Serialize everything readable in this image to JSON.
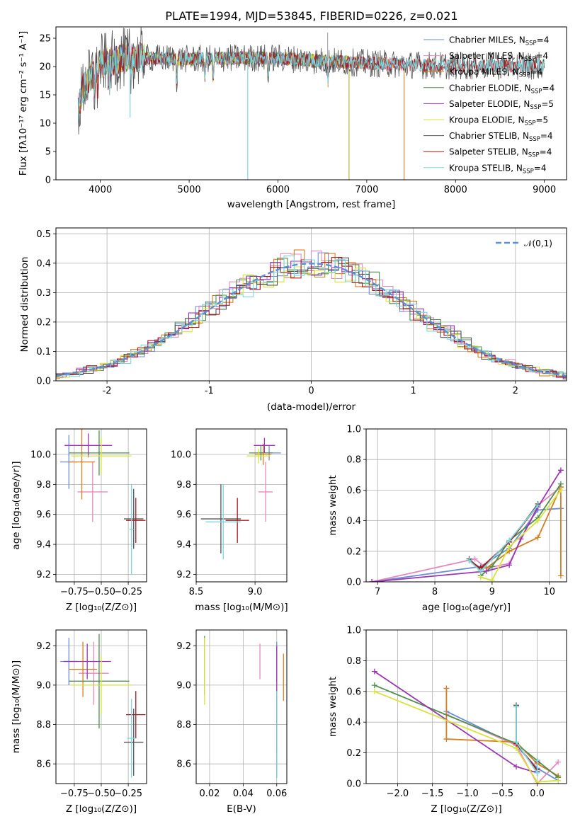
{
  "colors": {
    "Chabrier MILES": "#6b8fd6",
    "Salpeter MILES": "#e58ac0",
    "Kroupa MILES": "#d97d1f",
    "Chabrier ELODIE": "#4f8f4f",
    "Salpeter ELODIE": "#9b35b5",
    "Kroupa ELODIE": "#d7e33a",
    "Chabrier STELIB": "#555555",
    "Salpeter STELIB": "#b0181c",
    "Kroupa STELIB": "#7ad8e0"
  },
  "chart_data": [
    {
      "id": "spectrum",
      "type": "line",
      "title": "PLATE=1994, MJD=53845, FIBERID=0226, z=0.021",
      "xlabel": "wavelength [Angstrom, rest frame]",
      "ylabel": "Flux [fλ10⁻¹⁷ erg cm⁻² s⁻¹ A⁻¹]",
      "xlim": [
        3500,
        9250
      ],
      "ylim": [
        0,
        27
      ],
      "xticks": [
        4000,
        5000,
        6000,
        7000,
        8000,
        9000
      ],
      "yticks": [
        0,
        5,
        10,
        15,
        20,
        25
      ],
      "legend_position": "top-right",
      "legend": [
        {
          "label": "Chabrier MILES, N",
          "sub": "SSP",
          "tail": "=4",
          "series": "Chabrier MILES"
        },
        {
          "label": "Salpeter MILES, N",
          "sub": "SSP",
          "tail": "=4",
          "series": "Salpeter MILES"
        },
        {
          "label": "Kroupa MILES, N",
          "sub": "SSP",
          "tail": "=4",
          "series": "Kroupa MILES"
        },
        {
          "label": "Chabrier ELODIE, N",
          "sub": "SSP",
          "tail": "=4",
          "series": "Chabrier ELODIE"
        },
        {
          "label": "Salpeter ELODIE, N",
          "sub": "SSP",
          "tail": "=5",
          "series": "Salpeter ELODIE"
        },
        {
          "label": "Kroupa ELODIE, N",
          "sub": "SSP",
          "tail": "=5",
          "series": "Kroupa ELODIE"
        },
        {
          "label": "Chabrier STELIB, N",
          "sub": "SSP",
          "tail": "=4",
          "series": "Chabrier STELIB"
        },
        {
          "label": "Salpeter STELIB, N",
          "sub": "SSP",
          "tail": "=4",
          "series": "Salpeter STELIB"
        },
        {
          "label": "Kroupa STELIB, N",
          "sub": "SSP",
          "tail": "=4",
          "series": "Kroupa STELIB"
        }
      ],
      "continuum_anchors": {
        "x": [
          3750,
          3800,
          3900,
          4000,
          4300,
          4600,
          5000,
          5500,
          6000,
          6500,
          7000,
          7500,
          8000,
          8500,
          9000
        ],
        "y": [
          12,
          16,
          18.5,
          20.5,
          21.5,
          21.5,
          21.3,
          21.5,
          21.5,
          21,
          20.6,
          20.3,
          20.1,
          20.1,
          20.2
        ]
      },
      "range_ends": {
        "Kroupa STELIB": [
          3750,
          9000
        ],
        "Chabrier STELIB": [
          3750,
          9000
        ],
        "Chabrier ELODIE": [
          3750,
          6800
        ],
        "Salpeter ELODIE": [
          3750,
          6800
        ],
        "Kroupa ELODIE": [
          3750,
          6800
        ],
        "Chabrier MILES": [
          3750,
          7420
        ],
        "Salpeter MILES": [
          3750,
          7420
        ],
        "Kroupa MILES": [
          3750,
          7420
        ],
        "Salpeter STELIB": [
          3750,
          9000
        ]
      }
    },
    {
      "id": "residuals",
      "type": "histogram",
      "xlabel": "(data-model)/error",
      "ylabel": "Normed distribution",
      "xlim": [
        -2.5,
        2.5
      ],
      "ylim": [
        0,
        0.52
      ],
      "xticks": [
        -2,
        -1,
        0,
        1,
        2
      ],
      "yticks": [
        0.0,
        0.1,
        0.2,
        0.3,
        0.4,
        0.5
      ],
      "gaussian_label": "𝒩(0,1)",
      "legend_position": "top-right",
      "bin_width": 0.1,
      "envelope": "normal(0,1)"
    },
    {
      "id": "age_vs_Z",
      "type": "errorbar",
      "xlabel": "Z [log₁₀(Z/Z⊙)]",
      "ylabel": "age  [log₁₀(age/yr)]",
      "xlim": [
        -0.92,
        -0.08
      ],
      "ylim": [
        9.15,
        10.17
      ],
      "xticks": [
        -0.75,
        -0.5,
        -0.25
      ],
      "xticklabels": [
        "−0.75",
        "−0.50",
        "−0.25"
      ],
      "yticks": [
        9.2,
        9.4,
        9.6,
        9.8,
        10.0
      ],
      "points": [
        {
          "series": "Chabrier MILES",
          "x": -0.8,
          "xerr": 0.08,
          "y": 9.95,
          "yerr": 0.18
        },
        {
          "series": "Salpeter MILES",
          "x": -0.58,
          "xerr": 0.14,
          "y": 9.75,
          "yerr": 0.2
        },
        {
          "series": "Kroupa MILES",
          "x": -0.68,
          "xerr": 0.12,
          "y": 9.95,
          "yerr": 0.25
        },
        {
          "series": "Chabrier ELODIE",
          "x": -0.52,
          "xerr": 0.28,
          "y": 10.01,
          "yerr": 0.15
        },
        {
          "series": "Salpeter ELODIE",
          "x": -0.62,
          "xerr": 0.22,
          "y": 10.06,
          "yerr": 0.08
        },
        {
          "series": "Kroupa ELODIE",
          "x": -0.5,
          "xerr": 0.28,
          "y": 9.99,
          "yerr": 0.12
        },
        {
          "series": "Chabrier STELIB",
          "x": -0.2,
          "xerr": 0.09,
          "y": 9.57,
          "yerr": 0.2
        },
        {
          "series": "Salpeter STELIB",
          "x": -0.18,
          "xerr": 0.09,
          "y": 9.56,
          "yerr": 0.15
        },
        {
          "series": "Kroupa STELIB",
          "x": -0.22,
          "xerr": 0.02,
          "y": 9.5,
          "yerr": 0.3
        }
      ]
    },
    {
      "id": "age_vs_mass",
      "type": "errorbar",
      "xlabel": "mass [log₁₀(M/M⊙)]",
      "xlim": [
        8.5,
        9.27
      ],
      "ylim": [
        9.15,
        10.17
      ],
      "xticks": [
        8.5,
        9.0
      ],
      "xticklabels": [
        "8.5",
        "9.0"
      ],
      "yticks": [
        9.2,
        9.4,
        9.6,
        9.8,
        10.0
      ],
      "points": [
        {
          "series": "Chabrier MILES",
          "x": 9.12,
          "xerr": 0.1,
          "y": 10.01,
          "yerr": 0.05
        },
        {
          "series": "Salpeter MILES",
          "x": 9.09,
          "xerr": 0.06,
          "y": 9.75,
          "yerr": 0.2
        },
        {
          "series": "Kroupa MILES",
          "x": 9.07,
          "xerr": 0.07,
          "y": 10.0,
          "yerr": 0.07
        },
        {
          "series": "Chabrier ELODIE",
          "x": 9.05,
          "xerr": 0.1,
          "y": 10.01,
          "yerr": 0.05
        },
        {
          "series": "Salpeter ELODIE",
          "x": 9.08,
          "xerr": 0.09,
          "y": 10.06,
          "yerr": 0.05
        },
        {
          "series": "Kroupa ELODIE",
          "x": 9.03,
          "xerr": 0.1,
          "y": 9.99,
          "yerr": 0.05
        },
        {
          "series": "Chabrier STELIB",
          "x": 8.71,
          "xerr": 0.17,
          "y": 9.57,
          "yerr": 0.23
        },
        {
          "series": "Salpeter STELIB",
          "x": 8.85,
          "xerr": 0.1,
          "y": 9.56,
          "yerr": 0.15
        },
        {
          "series": "Kroupa STELIB",
          "x": 8.73,
          "xerr": 0.15,
          "y": 9.55,
          "yerr": 0.25
        }
      ]
    },
    {
      "id": "weight_vs_age",
      "type": "line",
      "xlabel": "age  [log₁₀(age/yr)]",
      "ylabel": "mass weight",
      "xlim": [
        6.8,
        10.3
      ],
      "ylim": [
        0,
        1.0
      ],
      "xticks": [
        7,
        8,
        9,
        10
      ],
      "yticks": [
        0.0,
        0.2,
        0.4,
        0.6,
        0.8,
        1.0
      ],
      "series": [
        {
          "name": "Chabrier MILES",
          "x": [
            6.9,
            8.8,
            9.3,
            9.8,
            10.2
          ],
          "y": [
            0.0,
            0.1,
            0.22,
            0.47,
            0.48
          ]
        },
        {
          "name": "Salpeter MILES",
          "x": [
            6.9,
            8.7,
            8.9,
            9.3,
            9.8,
            10.2
          ],
          "y": [
            0.0,
            0.15,
            0.09,
            0.12,
            0.5,
            0.62
          ]
        },
        {
          "name": "Kroupa MILES",
          "x": [
            8.9,
            9.3,
            9.8,
            10.2,
            10.2
          ],
          "y": [
            0.09,
            0.2,
            0.29,
            0.62,
            0.04
          ]
        },
        {
          "name": "Chabrier ELODIE",
          "x": [
            8.8,
            9.0,
            9.3,
            9.8,
            10.2
          ],
          "y": [
            0.04,
            0.1,
            0.27,
            0.42,
            0.64
          ]
        },
        {
          "name": "Salpeter ELODIE",
          "x": [
            6.9,
            8.9,
            9.3,
            9.5,
            9.8,
            10.2
          ],
          "y": [
            0.0,
            0.07,
            0.11,
            0.28,
            0.49,
            0.73
          ]
        },
        {
          "name": "Kroupa ELODIE",
          "x": [
            8.8,
            9.0,
            9.3,
            9.8,
            10.2
          ],
          "y": [
            0.03,
            0.01,
            0.23,
            0.4,
            0.6
          ]
        },
        {
          "name": "Chabrier STELIB",
          "x": [
            8.6,
            8.8,
            9.3,
            9.8
          ],
          "y": [
            0.15,
            0.08,
            0.26,
            0.51
          ]
        },
        {
          "name": "Salpeter STELIB",
          "x": [
            8.6,
            8.8,
            9.3,
            9.8
          ],
          "y": [
            0.14,
            0.09,
            0.26,
            0.5
          ]
        },
        {
          "name": "Kroupa STELIB",
          "x": [
            8.6,
            8.8,
            9.3,
            9.8
          ],
          "y": [
            0.14,
            0.07,
            0.27,
            0.5
          ]
        }
      ]
    },
    {
      "id": "mass_vs_Z",
      "type": "errorbar",
      "xlabel": "Z [log₁₀(Z/Z⊙)]",
      "ylabel": "mass [log₁₀(M/M⊙)]",
      "xlim": [
        -0.92,
        -0.08
      ],
      "ylim": [
        8.5,
        9.28
      ],
      "xticks": [
        -0.75,
        -0.5,
        -0.25
      ],
      "xticklabels": [
        "−0.75",
        "−0.50",
        "−0.25"
      ],
      "yticks": [
        8.6,
        8.8,
        9.0,
        9.2
      ],
      "points": [
        {
          "series": "Chabrier MILES",
          "x": -0.8,
          "xerr": 0.08,
          "y": 9.12,
          "yerr": 0.12
        },
        {
          "series": "Salpeter MILES",
          "x": -0.57,
          "xerr": 0.14,
          "y": 9.06,
          "yerr": 0.16
        },
        {
          "series": "Kroupa MILES",
          "x": -0.67,
          "xerr": 0.13,
          "y": 9.08,
          "yerr": 0.14
        },
        {
          "series": "Chabrier ELODIE",
          "x": -0.52,
          "xerr": 0.28,
          "y": 9.02,
          "yerr": 0.24
        },
        {
          "series": "Salpeter ELODIE",
          "x": -0.63,
          "xerr": 0.22,
          "y": 9.12,
          "yerr": 0.09
        },
        {
          "series": "Kroupa ELODIE",
          "x": -0.5,
          "xerr": 0.28,
          "y": 9.0,
          "yerr": 0.15
        },
        {
          "series": "Chabrier STELIB",
          "x": -0.2,
          "xerr": 0.09,
          "y": 8.71,
          "yerr": 0.17
        },
        {
          "series": "Salpeter STELIB",
          "x": -0.18,
          "xerr": 0.09,
          "y": 8.85,
          "yerr": 0.12
        },
        {
          "series": "Kroupa STELIB",
          "x": -0.22,
          "xerr": 0.04,
          "y": 8.73,
          "yerr": 0.2
        }
      ]
    },
    {
      "id": "mass_vs_ebv",
      "type": "errorbar",
      "xlabel": "E(B-V)",
      "xlim": [
        0.012,
        0.066
      ],
      "ylim": [
        8.5,
        9.28
      ],
      "xticks": [
        0.02,
        0.04,
        0.06
      ],
      "xticklabels": [
        "0.02",
        "0.04",
        "0.06"
      ],
      "yticks": [
        8.6,
        8.8,
        9.0,
        9.2
      ],
      "points": [
        {
          "series": "Chabrier MILES",
          "x": 0.06,
          "xerr": 0,
          "y": 9.12,
          "yerr": 0.1
        },
        {
          "series": "Salpeter MILES",
          "x": 0.05,
          "xerr": 0,
          "y": 9.12,
          "yerr": 0.09
        },
        {
          "series": "Kroupa MILES",
          "x": 0.064,
          "xerr": 0,
          "y": 9.04,
          "yerr": 0.12
        },
        {
          "series": "Chabrier ELODIE",
          "x": 0.017,
          "xerr": 0,
          "y": 9.1,
          "yerr": 0.15
        },
        {
          "series": "Salpeter ELODIE",
          "x": 0.06,
          "xerr": 0,
          "y": 9.0,
          "yerr": 0.2
        },
        {
          "series": "Kroupa ELODIE",
          "x": 0.017,
          "xerr": 0,
          "y": 9.07,
          "yerr": 0.17
        },
        {
          "series": "Chabrier STELIB",
          "x": 0.06,
          "xerr": 0,
          "y": 8.75,
          "yerr": 0.22
        },
        {
          "series": "Salpeter STELIB",
          "x": 0.06,
          "xerr": 0,
          "y": 8.8,
          "yerr": 0.15
        },
        {
          "series": "Kroupa STELIB",
          "x": 0.06,
          "xerr": 0,
          "y": 8.75,
          "yerr": 0.22
        }
      ]
    },
    {
      "id": "weight_vs_Z",
      "type": "line",
      "xlabel": "Z [log₁₀(Z/Z⊙)]",
      "ylabel": "mass weight",
      "xlim": [
        -2.45,
        0.42
      ],
      "ylim": [
        0,
        1.0
      ],
      "xticks": [
        -2.0,
        -1.5,
        -1.0,
        -0.5,
        0.0
      ],
      "xticklabels": [
        "−2.0",
        "−1.5",
        "−1.0",
        "−0.5",
        "0.0"
      ],
      "yticks": [
        0.0,
        0.2,
        0.4,
        0.6,
        0.8,
        1.0
      ],
      "series": [
        {
          "name": "Chabrier MILES",
          "x": [
            -1.3,
            -0.3,
            0.0,
            0.3
          ],
          "y": [
            0.47,
            0.25,
            0.1,
            0.02
          ]
        },
        {
          "name": "Salpeter MILES",
          "x": [
            -1.3,
            -0.3,
            0.0,
            0.3
          ],
          "y": [
            0.45,
            0.25,
            0.0,
            0.14
          ]
        },
        {
          "name": "Kroupa MILES",
          "x": [
            -1.3,
            -1.3,
            -0.3,
            0.0,
            0.3,
            0.3
          ],
          "y": [
            0.62,
            0.29,
            0.27,
            0.13,
            0.05,
            0.04
          ]
        },
        {
          "name": "Chabrier ELODIE",
          "x": [
            -2.33,
            -0.3,
            0.0,
            0.3
          ],
          "y": [
            0.64,
            0.26,
            0.15,
            0.04
          ]
        },
        {
          "name": "Salpeter ELODIE",
          "x": [
            -2.33,
            -0.3,
            0.0
          ],
          "y": [
            0.73,
            0.11,
            0.07
          ]
        },
        {
          "name": "Kroupa ELODIE",
          "x": [
            -2.33,
            -0.3,
            0.0,
            0.3
          ],
          "y": [
            0.6,
            0.23,
            0.01,
            0.02
          ]
        },
        {
          "name": "Chabrier STELIB",
          "x": [
            -0.3,
            -0.3,
            0.0,
            0.0
          ],
          "y": [
            0.51,
            0.26,
            0.08,
            0.15
          ]
        },
        {
          "name": "Salpeter STELIB",
          "x": [
            -0.3,
            -0.3,
            0.0,
            0.0
          ],
          "y": [
            0.5,
            0.26,
            0.09,
            0.14
          ]
        },
        {
          "name": "Kroupa STELIB",
          "x": [
            -0.3,
            -0.3,
            0.0,
            0.0
          ],
          "y": [
            0.5,
            0.27,
            0.07,
            0.15
          ]
        }
      ]
    }
  ]
}
